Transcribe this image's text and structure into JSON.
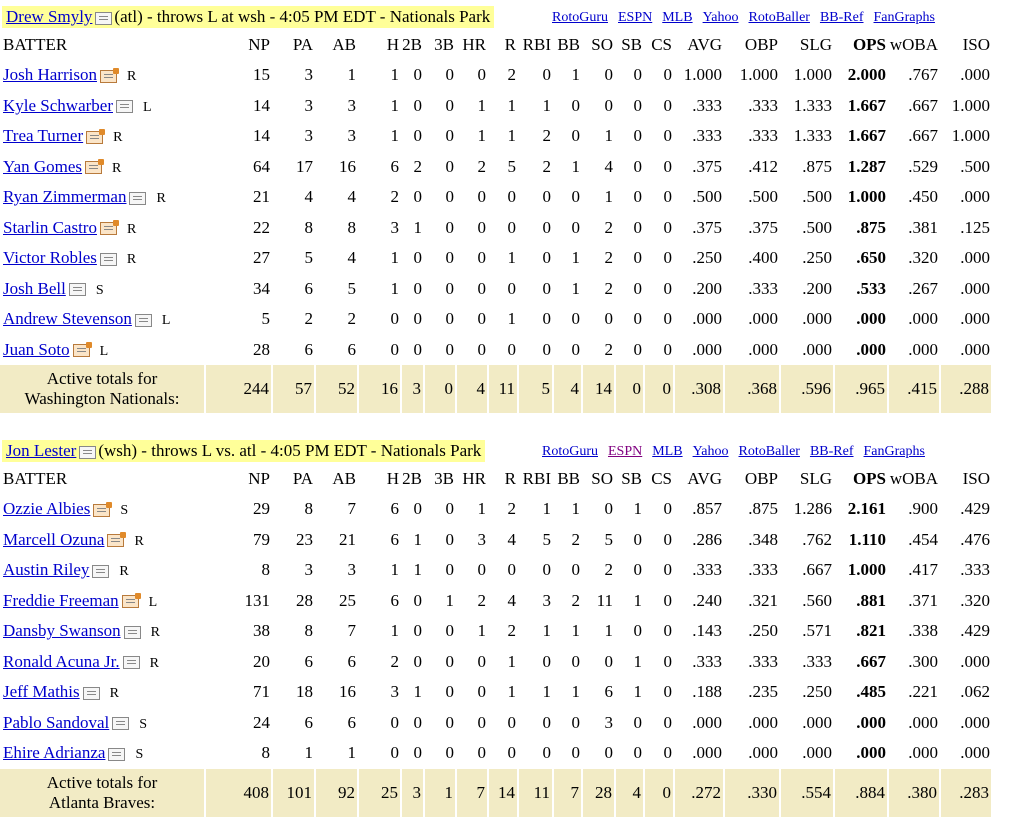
{
  "columns": [
    "BATTER",
    "NP",
    "PA",
    "AB",
    "H",
    "2B",
    "3B",
    "HR",
    "R",
    "RBI",
    "BB",
    "SO",
    "SB",
    "CS",
    "AVG",
    "OBP",
    "SLG",
    "OPS",
    "wOBA",
    "ISO"
  ],
  "links": [
    "RotoGuru",
    "ESPN",
    "MLB",
    "Yahoo",
    "RotoBaller",
    "BB-Ref",
    "FanGraphs"
  ],
  "games": [
    {
      "pitcher": "Drew Smyly",
      "info": "(atl) - throws L at wsh - 4:05 PM EDT - Nationals Park",
      "totals_label_1": "Active totals for",
      "totals_label_2": "Washington Nationals:",
      "totals": [
        "244",
        "57",
        "52",
        "16",
        "3",
        "0",
        "4",
        "11",
        "5",
        "4",
        "14",
        "0",
        "0",
        ".308",
        ".368",
        ".596",
        ".965",
        ".415",
        ".288"
      ],
      "batters": [
        {
          "name": "Josh Harrison",
          "hand": "R",
          "hot": true,
          "stats": [
            "15",
            "3",
            "1",
            "1",
            "0",
            "0",
            "0",
            "2",
            "0",
            "1",
            "0",
            "0",
            "0",
            "1.000",
            "1.000",
            "1.000",
            "2.000",
            ".767",
            ".000"
          ]
        },
        {
          "name": "Kyle Schwarber",
          "hand": "L",
          "hot": false,
          "stats": [
            "14",
            "3",
            "3",
            "1",
            "0",
            "0",
            "1",
            "1",
            "1",
            "0",
            "0",
            "0",
            "0",
            ".333",
            ".333",
            "1.333",
            "1.667",
            ".667",
            "1.000"
          ]
        },
        {
          "name": "Trea Turner",
          "hand": "R",
          "hot": true,
          "stats": [
            "14",
            "3",
            "3",
            "1",
            "0",
            "0",
            "1",
            "1",
            "2",
            "0",
            "1",
            "0",
            "0",
            ".333",
            ".333",
            "1.333",
            "1.667",
            ".667",
            "1.000"
          ]
        },
        {
          "name": "Yan Gomes",
          "hand": "R",
          "hot": true,
          "stats": [
            "64",
            "17",
            "16",
            "6",
            "2",
            "0",
            "2",
            "5",
            "2",
            "1",
            "4",
            "0",
            "0",
            ".375",
            ".412",
            ".875",
            "1.287",
            ".529",
            ".500"
          ]
        },
        {
          "name": "Ryan Zimmerman",
          "hand": "R",
          "hot": false,
          "stats": [
            "21",
            "4",
            "4",
            "2",
            "0",
            "0",
            "0",
            "0",
            "0",
            "0",
            "1",
            "0",
            "0",
            ".500",
            ".500",
            ".500",
            "1.000",
            ".450",
            ".000"
          ]
        },
        {
          "name": "Starlin Castro",
          "hand": "R",
          "hot": true,
          "stats": [
            "22",
            "8",
            "8",
            "3",
            "1",
            "0",
            "0",
            "0",
            "0",
            "0",
            "2",
            "0",
            "0",
            ".375",
            ".375",
            ".500",
            ".875",
            ".381",
            ".125"
          ]
        },
        {
          "name": "Victor Robles",
          "hand": "R",
          "hot": false,
          "stats": [
            "27",
            "5",
            "4",
            "1",
            "0",
            "0",
            "0",
            "1",
            "0",
            "1",
            "2",
            "0",
            "0",
            ".250",
            ".400",
            ".250",
            ".650",
            ".320",
            ".000"
          ]
        },
        {
          "name": "Josh Bell",
          "hand": "S",
          "hot": false,
          "stats": [
            "34",
            "6",
            "5",
            "1",
            "0",
            "0",
            "0",
            "0",
            "0",
            "1",
            "2",
            "0",
            "0",
            ".200",
            ".333",
            ".200",
            ".533",
            ".267",
            ".000"
          ]
        },
        {
          "name": "Andrew Stevenson",
          "hand": "L",
          "hot": false,
          "stats": [
            "5",
            "2",
            "2",
            "0",
            "0",
            "0",
            "0",
            "1",
            "0",
            "0",
            "0",
            "0",
            "0",
            ".000",
            ".000",
            ".000",
            ".000",
            ".000",
            ".000"
          ]
        },
        {
          "name": "Juan Soto",
          "hand": "L",
          "hot": true,
          "stats": [
            "28",
            "6",
            "6",
            "0",
            "0",
            "0",
            "0",
            "0",
            "0",
            "0",
            "2",
            "0",
            "0",
            ".000",
            ".000",
            ".000",
            ".000",
            ".000",
            ".000"
          ]
        }
      ]
    },
    {
      "pitcher": "Jon Lester",
      "info": "(wsh) - throws L vs. atl - 4:05 PM EDT - Nationals Park",
      "totals_label_1": "Active totals for",
      "totals_label_2": "Atlanta Braves:",
      "totals": [
        "408",
        "101",
        "92",
        "25",
        "3",
        "1",
        "7",
        "14",
        "11",
        "7",
        "28",
        "4",
        "0",
        ".272",
        ".330",
        ".554",
        ".884",
        ".380",
        ".283"
      ],
      "batters": [
        {
          "name": "Ozzie Albies",
          "hand": "S",
          "hot": true,
          "stats": [
            "29",
            "8",
            "7",
            "6",
            "0",
            "0",
            "1",
            "2",
            "1",
            "1",
            "0",
            "1",
            "0",
            ".857",
            ".875",
            "1.286",
            "2.161",
            ".900",
            ".429"
          ]
        },
        {
          "name": "Marcell Ozuna",
          "hand": "R",
          "hot": true,
          "stats": [
            "79",
            "23",
            "21",
            "6",
            "1",
            "0",
            "3",
            "4",
            "5",
            "2",
            "5",
            "0",
            "0",
            ".286",
            ".348",
            ".762",
            "1.110",
            ".454",
            ".476"
          ]
        },
        {
          "name": "Austin Riley",
          "hand": "R",
          "hot": false,
          "stats": [
            "8",
            "3",
            "3",
            "1",
            "1",
            "0",
            "0",
            "0",
            "0",
            "0",
            "2",
            "0",
            "0",
            ".333",
            ".333",
            ".667",
            "1.000",
            ".417",
            ".333"
          ]
        },
        {
          "name": "Freddie Freeman",
          "hand": "L",
          "hot": true,
          "stats": [
            "131",
            "28",
            "25",
            "6",
            "0",
            "1",
            "2",
            "4",
            "3",
            "2",
            "11",
            "1",
            "0",
            ".240",
            ".321",
            ".560",
            ".881",
            ".371",
            ".320"
          ]
        },
        {
          "name": "Dansby Swanson",
          "hand": "R",
          "hot": false,
          "stats": [
            "38",
            "8",
            "7",
            "1",
            "0",
            "0",
            "1",
            "2",
            "1",
            "1",
            "1",
            "0",
            "0",
            ".143",
            ".250",
            ".571",
            ".821",
            ".338",
            ".429"
          ]
        },
        {
          "name": "Ronald Acuna Jr.",
          "hand": "R",
          "hot": false,
          "stats": [
            "20",
            "6",
            "6",
            "2",
            "0",
            "0",
            "0",
            "1",
            "0",
            "0",
            "0",
            "1",
            "0",
            ".333",
            ".333",
            ".333",
            ".667",
            ".300",
            ".000"
          ]
        },
        {
          "name": "Jeff Mathis",
          "hand": "R",
          "hot": false,
          "stats": [
            "71",
            "18",
            "16",
            "3",
            "1",
            "0",
            "0",
            "1",
            "1",
            "1",
            "6",
            "1",
            "0",
            ".188",
            ".235",
            ".250",
            ".485",
            ".221",
            ".062"
          ]
        },
        {
          "name": "Pablo Sandoval",
          "hand": "S",
          "hot": false,
          "stats": [
            "24",
            "6",
            "6",
            "0",
            "0",
            "0",
            "0",
            "0",
            "0",
            "0",
            "3",
            "0",
            "0",
            ".000",
            ".000",
            ".000",
            ".000",
            ".000",
            ".000"
          ]
        },
        {
          "name": "Ehire Adrianza",
          "hand": "S",
          "hot": false,
          "stats": [
            "8",
            "1",
            "1",
            "0",
            "0",
            "0",
            "0",
            "0",
            "0",
            "0",
            "0",
            "0",
            "0",
            ".000",
            ".000",
            ".000",
            ".000",
            ".000",
            ".000"
          ]
        }
      ]
    }
  ]
}
